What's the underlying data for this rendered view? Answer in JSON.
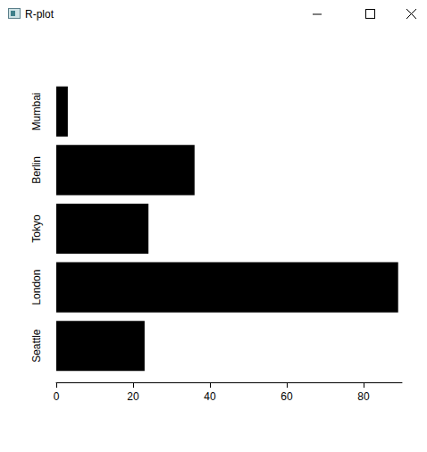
{
  "window": {
    "title": "R-plot"
  },
  "chart_data": {
    "type": "bar",
    "orientation": "horizontal",
    "categories": [
      "Seattle",
      "London",
      "Tokyo",
      "Berlin",
      "Mumbai"
    ],
    "values": [
      23,
      89,
      24,
      36,
      3
    ],
    "color": "#000000",
    "xlim": [
      0,
      90
    ],
    "xticks": [
      0,
      20,
      40,
      60,
      80
    ],
    "grid": false
  }
}
